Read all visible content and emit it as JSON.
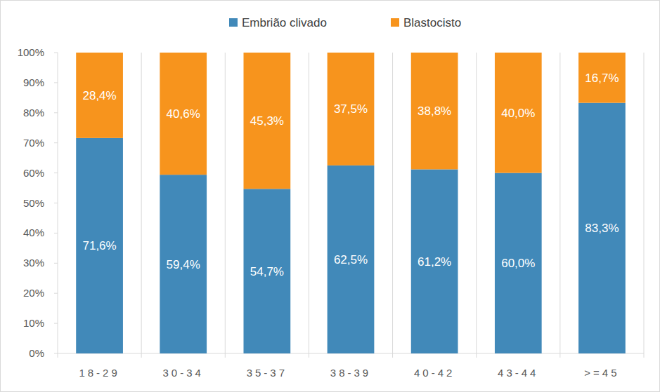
{
  "chart_data": {
    "type": "bar",
    "stacked": true,
    "data_labels": true,
    "grid": true,
    "legend": "top",
    "categories": [
      "18-29",
      "30-34",
      "35-37",
      "38-39",
      "40-42",
      "43-44",
      ">=45"
    ],
    "series": [
      {
        "name": "Embrião clivado",
        "color": "#4189b9",
        "values": [
          71.6,
          59.4,
          54.7,
          62.5,
          61.2,
          60.0,
          83.3
        ],
        "value_labels": [
          "71,6%",
          "59,4%",
          "54,7%",
          "62,5%",
          "61,2%",
          "60,0%",
          "83,3%"
        ]
      },
      {
        "name": "Blastocisto",
        "color": "#f7941d",
        "values": [
          28.4,
          40.6,
          45.3,
          37.5,
          38.8,
          40.0,
          16.7
        ],
        "value_labels": [
          "28,4%",
          "40,6%",
          "45,3%",
          "37,5%",
          "38,8%",
          "40,0%",
          "16,7%"
        ]
      }
    ],
    "ylim": [
      0,
      100
    ],
    "yticks": [
      {
        "value": 0,
        "label": "0%"
      },
      {
        "value": 10,
        "label": "10%"
      },
      {
        "value": 20,
        "label": "20%"
      },
      {
        "value": 30,
        "label": "30%"
      },
      {
        "value": 40,
        "label": "40%"
      },
      {
        "value": 50,
        "label": "50%"
      },
      {
        "value": 60,
        "label": "60%"
      },
      {
        "value": 70,
        "label": "70%"
      },
      {
        "value": 80,
        "label": "80%"
      },
      {
        "value": 90,
        "label": "90%"
      },
      {
        "value": 100,
        "label": "100%"
      }
    ]
  }
}
